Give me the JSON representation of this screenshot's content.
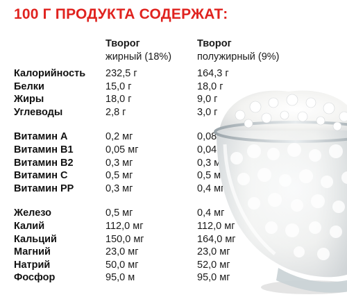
{
  "title": "100 Г ПРОДУКТА СОДЕРЖАТ:",
  "columns": [
    {
      "line1": "Творог",
      "line2": "жирный (18%)"
    },
    {
      "line1": "Творог",
      "line2": "полужирный (9%)"
    }
  ],
  "groups": [
    {
      "rows": [
        {
          "name": "Калорийность",
          "v1": "232,5 г",
          "v2": "164,3 г"
        },
        {
          "name": "Белки",
          "v1": "15,0 г",
          "v2": "18,0 г"
        },
        {
          "name": "Жиры",
          "v1": "18,0 г",
          "v2": "9,0 г"
        },
        {
          "name": "Углеводы",
          "v1": "2,8 г",
          "v2": "3,0 г"
        }
      ]
    },
    {
      "rows": [
        {
          "name": "Витамин А",
          "v1": "0,2 мг",
          "v2": "0,08 мг"
        },
        {
          "name": "Витамин В1",
          "v1": "0,05 мг",
          "v2": "0,04 мг"
        },
        {
          "name": "Витамин В2",
          "v1": "0,3 мг",
          "v2": "0,3 мг"
        },
        {
          "name": "Витамин С",
          "v1": "0,5 мг",
          "v2": "0,5 мг"
        },
        {
          "name": "Витамин РР",
          "v1": "0,3 мг",
          "v2": "0,4 мг"
        }
      ]
    },
    {
      "rows": [
        {
          "name": "Железо",
          "v1": "0,5 мг",
          "v2": "0,4 мг"
        },
        {
          "name": "Калий",
          "v1": "112,0 мг",
          "v2": "112,0 мг"
        },
        {
          "name": "Кальций",
          "v1": "150,0 мг",
          "v2": "164,0 мг"
        },
        {
          "name": "Магний",
          "v1": "23,0 мг",
          "v2": "23,0 мг"
        },
        {
          "name": "Натрий",
          "v1": "50,0 мг",
          "v2": "52,0 мг"
        },
        {
          "name": "Фосфор",
          "v1": "95,0 м",
          "v2": "95,0 мг"
        }
      ]
    }
  ],
  "image": {
    "subject": "glass-bowl-with-cottage-cheese"
  },
  "colors": {
    "title": "#e0231f",
    "text": "#1a1a1a",
    "background": "#ffffff"
  }
}
